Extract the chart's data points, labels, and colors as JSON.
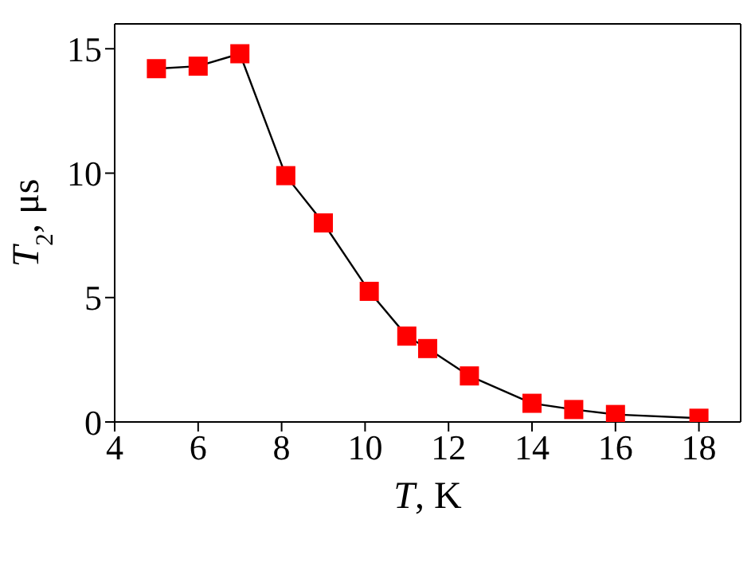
{
  "chart_data": {
    "type": "line",
    "xlabel": "T, K",
    "ylabel": "T$_{2}$, μs",
    "x": [
      5,
      6,
      7,
      8.1,
      9,
      10.1,
      11,
      11.5,
      12.5,
      14,
      15,
      16,
      18
    ],
    "series": [
      {
        "color": "#ff0000",
        "values": [
          14.2,
          14.3,
          14.8,
          9.9,
          8.0,
          5.25,
          3.45,
          2.95,
          1.85,
          0.75,
          0.5,
          0.3,
          0.15
        ]
      }
    ],
    "xlim": [
      4,
      19
    ],
    "xticks": [
      4,
      6,
      8,
      10,
      12,
      14,
      16,
      18
    ],
    "ylim": [
      0,
      16
    ],
    "yticks": [
      0,
      5,
      10,
      15
    ],
    "grid": false,
    "legend": false,
    "marker": "square",
    "line_style": "solid"
  }
}
